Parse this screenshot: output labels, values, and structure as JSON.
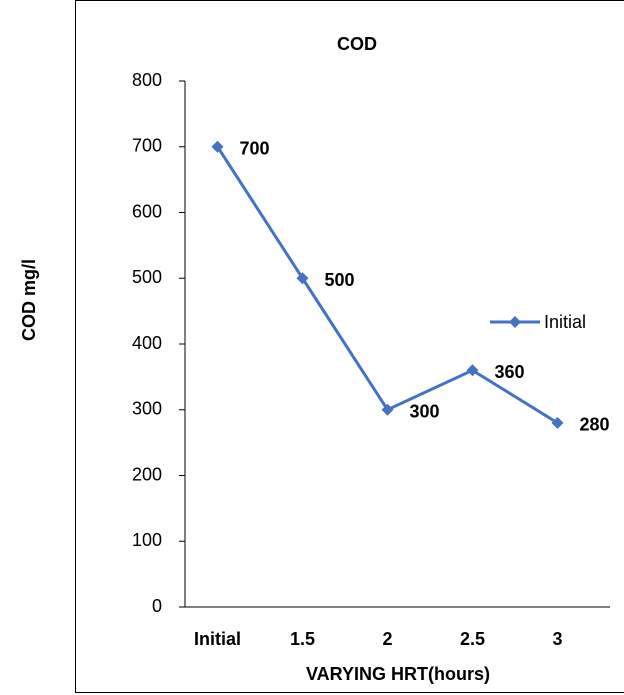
{
  "chart_data": {
    "type": "line",
    "title": "COD",
    "x_label": "VARYING HRT(hours)",
    "y_label": "COD mg/l",
    "categories": [
      "Initial",
      "1.5",
      "2",
      "2.5",
      "3"
    ],
    "series": [
      {
        "name": "Initial",
        "color": "#4472c4",
        "values": [
          700,
          500,
          300,
          360,
          280
        ]
      }
    ],
    "ylim": [
      0,
      800
    ],
    "yticks": [
      0,
      100,
      200,
      300,
      400,
      500,
      600,
      700,
      800
    ],
    "grid": false,
    "legend": "right",
    "data_labels": true
  }
}
